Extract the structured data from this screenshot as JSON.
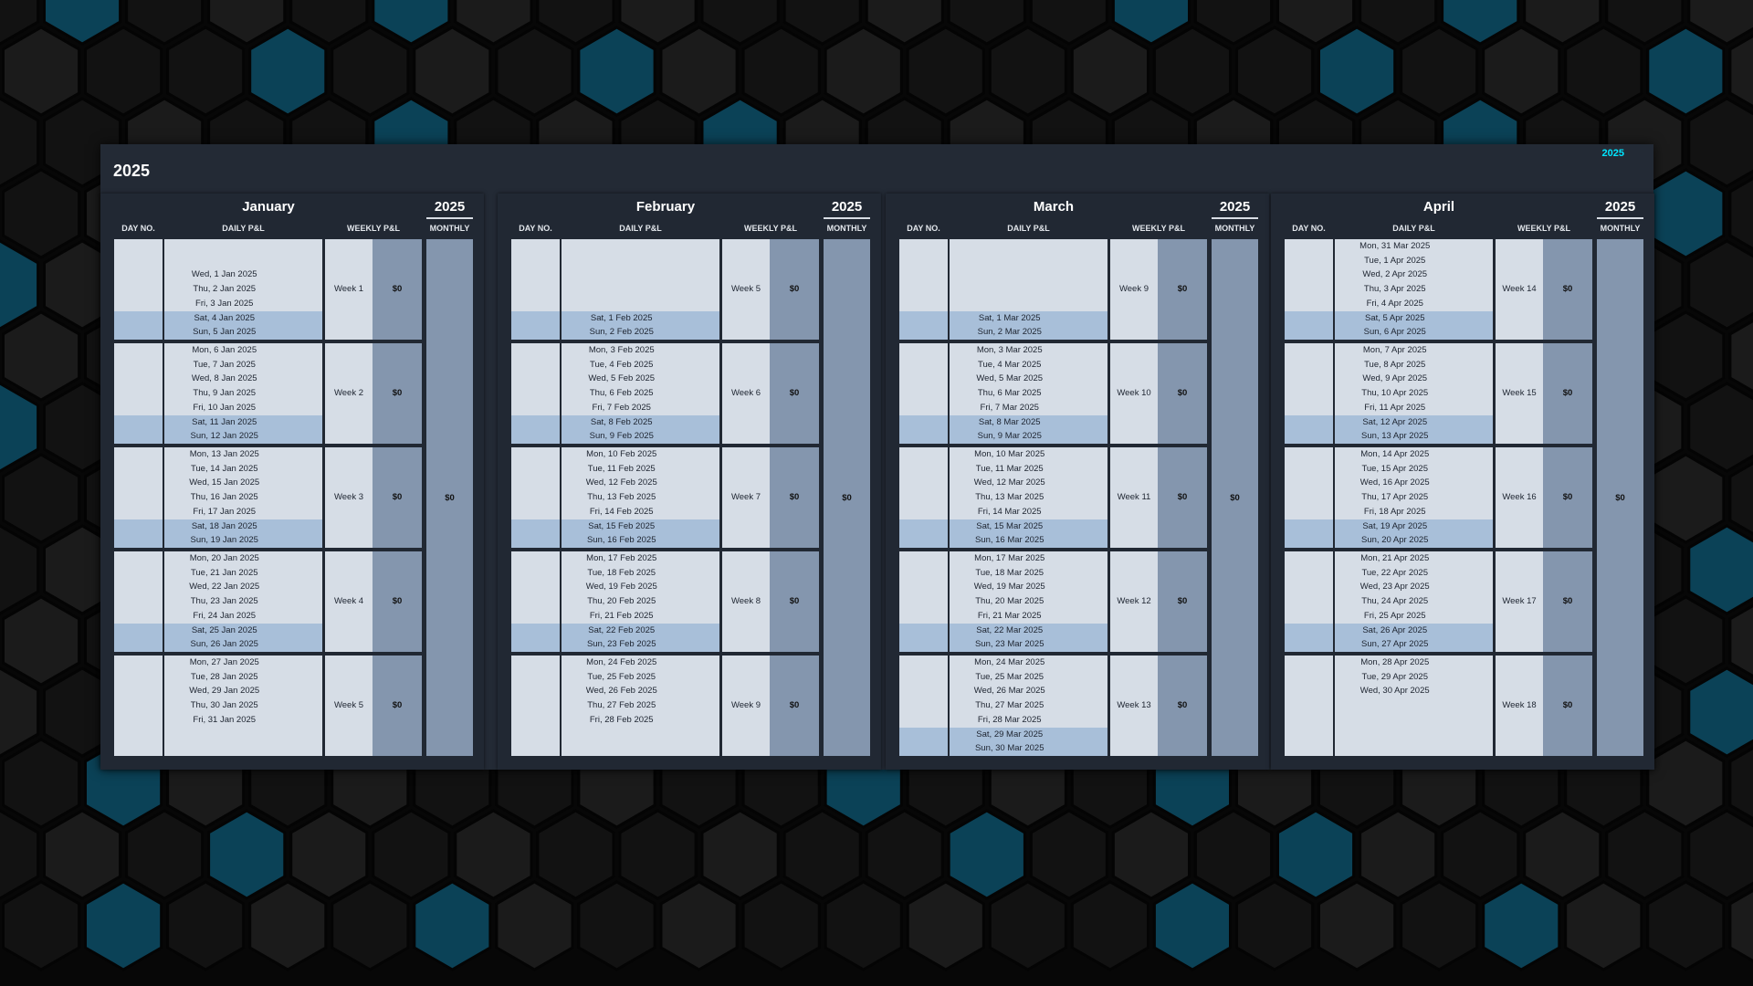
{
  "title": "2025",
  "year_badge": "2025",
  "colors": {
    "panel": "#232a35",
    "cell": "#d6dde6",
    "weekend": "#a8bfd9",
    "pl_column": "#8496ae",
    "accent": "#00e5ff",
    "hex_teal": "#0b4257"
  },
  "column_headers": {
    "day_no": "DAY NO.",
    "daily": "DAILY P&L",
    "weekly": "WEEKLY P&L",
    "monthly": "MONTHLY"
  },
  "months": [
    {
      "name": "January",
      "year": "2025",
      "monthly_total": "$0",
      "weeks": [
        {
          "label": "Week 1",
          "total": "$0",
          "days": [
            "",
            "",
            "Wed, 1 Jan 2025",
            "Thu, 2 Jan 2025",
            "Fri, 3 Jan 2025",
            "Sat, 4 Jan 2025",
            "Sun, 5 Jan 2025"
          ]
        },
        {
          "label": "Week 2",
          "total": "$0",
          "days": [
            "Mon, 6 Jan 2025",
            "Tue, 7 Jan 2025",
            "Wed, 8 Jan 2025",
            "Thu, 9 Jan 2025",
            "Fri, 10 Jan 2025",
            "Sat, 11 Jan 2025",
            "Sun, 12 Jan 2025"
          ]
        },
        {
          "label": "Week 3",
          "total": "$0",
          "days": [
            "Mon, 13 Jan 2025",
            "Tue, 14 Jan 2025",
            "Wed, 15 Jan 2025",
            "Thu, 16 Jan 2025",
            "Fri, 17 Jan 2025",
            "Sat, 18 Jan 2025",
            "Sun, 19 Jan 2025"
          ]
        },
        {
          "label": "Week 4",
          "total": "$0",
          "days": [
            "Mon, 20 Jan 2025",
            "Tue, 21 Jan 2025",
            "Wed, 22 Jan 2025",
            "Thu, 23 Jan 2025",
            "Fri, 24 Jan 2025",
            "Sat, 25 Jan 2025",
            "Sun, 26 Jan 2025"
          ]
        },
        {
          "label": "Week 5",
          "total": "$0",
          "days": [
            "Mon, 27 Jan 2025",
            "Tue, 28 Jan 2025",
            "Wed, 29 Jan 2025",
            "Thu, 30 Jan 2025",
            "Fri, 31 Jan 2025",
            "",
            ""
          ]
        }
      ]
    },
    {
      "name": "February",
      "year": "2025",
      "monthly_total": "$0",
      "weeks": [
        {
          "label": "Week 5",
          "total": "$0",
          "days": [
            "",
            "",
            "",
            "",
            "",
            "Sat, 1 Feb 2025",
            "Sun, 2 Feb 2025"
          ]
        },
        {
          "label": "Week 6",
          "total": "$0",
          "days": [
            "Mon, 3 Feb 2025",
            "Tue, 4 Feb 2025",
            "Wed, 5 Feb 2025",
            "Thu, 6 Feb 2025",
            "Fri, 7 Feb 2025",
            "Sat, 8 Feb 2025",
            "Sun, 9 Feb 2025"
          ]
        },
        {
          "label": "Week 7",
          "total": "$0",
          "days": [
            "Mon, 10 Feb 2025",
            "Tue, 11 Feb 2025",
            "Wed, 12 Feb 2025",
            "Thu, 13 Feb 2025",
            "Fri, 14 Feb 2025",
            "Sat, 15 Feb 2025",
            "Sun, 16 Feb 2025"
          ]
        },
        {
          "label": "Week 8",
          "total": "$0",
          "days": [
            "Mon, 17 Feb 2025",
            "Tue, 18 Feb 2025",
            "Wed, 19 Feb 2025",
            "Thu, 20 Feb 2025",
            "Fri, 21 Feb 2025",
            "Sat, 22 Feb 2025",
            "Sun, 23 Feb 2025"
          ]
        },
        {
          "label": "Week 9",
          "total": "$0",
          "days": [
            "Mon, 24 Feb 2025",
            "Tue, 25 Feb 2025",
            "Wed, 26 Feb 2025",
            "Thu, 27 Feb 2025",
            "Fri, 28 Feb 2025",
            "",
            ""
          ]
        }
      ]
    },
    {
      "name": "March",
      "year": "2025",
      "monthly_total": "$0",
      "weeks": [
        {
          "label": "Week 9",
          "total": "$0",
          "days": [
            "",
            "",
            "",
            "",
            "",
            "Sat, 1 Mar 2025",
            "Sun, 2 Mar 2025"
          ]
        },
        {
          "label": "Week 10",
          "total": "$0",
          "days": [
            "Mon, 3 Mar 2025",
            "Tue, 4 Mar 2025",
            "Wed, 5 Mar 2025",
            "Thu, 6 Mar 2025",
            "Fri, 7 Mar 2025",
            "Sat, 8 Mar 2025",
            "Sun, 9 Mar 2025"
          ]
        },
        {
          "label": "Week 11",
          "total": "$0",
          "days": [
            "Mon, 10 Mar 2025",
            "Tue, 11 Mar 2025",
            "Wed, 12 Mar 2025",
            "Thu, 13 Mar 2025",
            "Fri, 14 Mar 2025",
            "Sat, 15 Mar 2025",
            "Sun, 16 Mar 2025"
          ]
        },
        {
          "label": "Week 12",
          "total": "$0",
          "days": [
            "Mon, 17 Mar 2025",
            "Tue, 18 Mar 2025",
            "Wed, 19 Mar 2025",
            "Thu, 20 Mar 2025",
            "Fri, 21 Mar 2025",
            "Sat, 22 Mar 2025",
            "Sun, 23 Mar 2025"
          ]
        },
        {
          "label": "Week 13",
          "total": "$0",
          "days": [
            "Mon, 24 Mar 2025",
            "Tue, 25 Mar 2025",
            "Wed, 26 Mar 2025",
            "Thu, 27 Mar 2025",
            "Fri, 28 Mar 2025",
            "Sat, 29 Mar 2025",
            "Sun, 30 Mar 2025"
          ]
        }
      ]
    },
    {
      "name": "April",
      "year": "2025",
      "monthly_total": "$0",
      "weeks": [
        {
          "label": "Week 14",
          "total": "$0",
          "days": [
            "Mon, 31 Mar 2025",
            "Tue, 1 Apr 2025",
            "Wed, 2 Apr 2025",
            "Thu, 3 Apr 2025",
            "Fri, 4 Apr 2025",
            "Sat, 5 Apr 2025",
            "Sun, 6 Apr 2025"
          ]
        },
        {
          "label": "Week 15",
          "total": "$0",
          "days": [
            "Mon, 7 Apr 2025",
            "Tue, 8 Apr 2025",
            "Wed, 9 Apr 2025",
            "Thu, 10 Apr 2025",
            "Fri, 11 Apr 2025",
            "Sat, 12 Apr 2025",
            "Sun, 13 Apr 2025"
          ]
        },
        {
          "label": "Week 16",
          "total": "$0",
          "days": [
            "Mon, 14 Apr 2025",
            "Tue, 15 Apr 2025",
            "Wed, 16 Apr 2025",
            "Thu, 17 Apr 2025",
            "Fri, 18 Apr 2025",
            "Sat, 19 Apr 2025",
            "Sun, 20 Apr 2025"
          ]
        },
        {
          "label": "Week 17",
          "total": "$0",
          "days": [
            "Mon, 21 Apr 2025",
            "Tue, 22 Apr 2025",
            "Wed, 23 Apr 2025",
            "Thu, 24 Apr 2025",
            "Fri, 25 Apr 2025",
            "Sat, 26 Apr 2025",
            "Sun, 27 Apr 2025"
          ]
        },
        {
          "label": "Week 18",
          "total": "$0",
          "days": [
            "Mon, 28 Apr 2025",
            "Tue, 29 Apr 2025",
            "Wed, 30 Apr 2025",
            "",
            "",
            "",
            ""
          ]
        }
      ]
    }
  ]
}
